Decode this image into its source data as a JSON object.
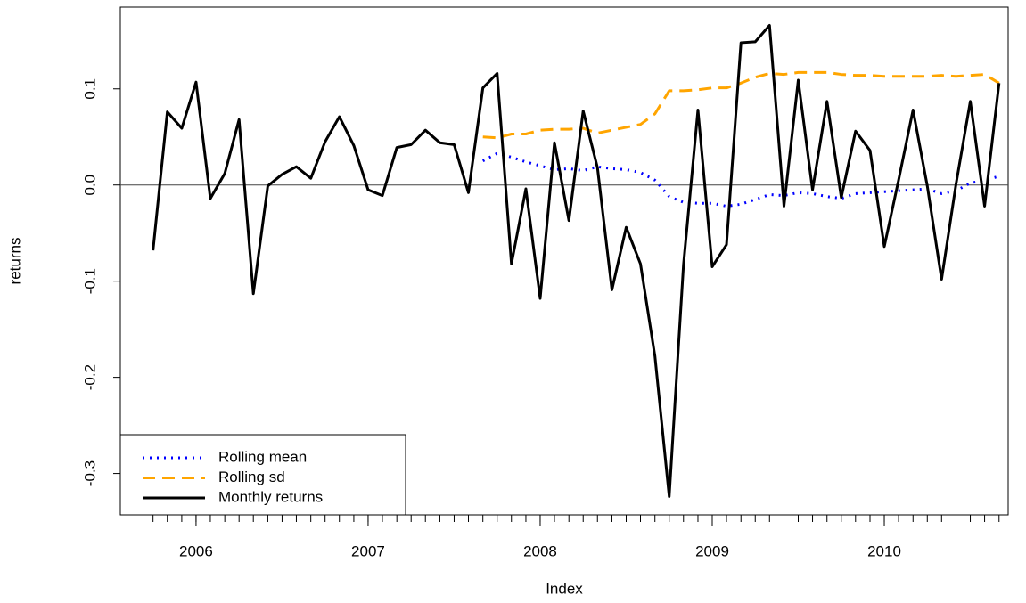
{
  "chart_data": {
    "type": "line",
    "xlabel": "Index",
    "ylabel": "returns",
    "x": [
      2005.75,
      2005.833,
      2005.917,
      2006,
      2006.083,
      2006.167,
      2006.25,
      2006.333,
      2006.417,
      2006.5,
      2006.583,
      2006.667,
      2006.75,
      2006.833,
      2006.917,
      2007,
      2007.083,
      2007.167,
      2007.25,
      2007.333,
      2007.417,
      2007.5,
      2007.583,
      2007.667,
      2007.75,
      2007.833,
      2007.917,
      2008,
      2008.083,
      2008.167,
      2008.25,
      2008.333,
      2008.417,
      2008.5,
      2008.583,
      2008.667,
      2008.75,
      2008.833,
      2008.917,
      2009,
      2009.083,
      2009.167,
      2009.25,
      2009.333,
      2009.417,
      2009.5,
      2009.583,
      2009.667,
      2009.75,
      2009.833,
      2009.917,
      2010,
      2010.083,
      2010.167,
      2010.25,
      2010.333,
      2010.417,
      2010.5,
      2010.583,
      2010.667
    ],
    "series": [
      {
        "name": "Rolling mean",
        "color": "#0000ff",
        "style": "dotted",
        "values": [
          null,
          null,
          null,
          null,
          null,
          null,
          null,
          null,
          null,
          null,
          null,
          null,
          null,
          null,
          null,
          null,
          null,
          null,
          null,
          null,
          null,
          null,
          null,
          0.025,
          0.033,
          0.029,
          0.024,
          0.02,
          0.016,
          0.017,
          0.015,
          0.019,
          0.017,
          0.016,
          0.013,
          0.005,
          -0.012,
          -0.018,
          -0.019,
          -0.019,
          -0.022,
          -0.02,
          -0.015,
          -0.01,
          -0.011,
          -0.008,
          -0.009,
          -0.012,
          -0.014,
          -0.009,
          -0.008,
          -0.007,
          -0.006,
          -0.005,
          -0.004,
          -0.009,
          -0.006,
          0.002,
          0.005,
          0.009
        ]
      },
      {
        "name": "Rolling sd",
        "color": "#ffa500",
        "style": "dashed",
        "values": [
          null,
          null,
          null,
          null,
          null,
          null,
          null,
          null,
          null,
          null,
          null,
          null,
          null,
          null,
          null,
          null,
          null,
          null,
          null,
          null,
          null,
          null,
          null,
          0.05,
          0.049,
          0.053,
          0.053,
          0.057,
          0.058,
          0.058,
          0.059,
          0.054,
          0.057,
          0.06,
          0.063,
          0.074,
          0.098,
          0.098,
          0.099,
          0.101,
          0.101,
          0.106,
          0.112,
          0.116,
          0.115,
          0.117,
          0.117,
          0.117,
          0.115,
          0.114,
          0.114,
          0.113,
          0.113,
          0.113,
          0.113,
          0.114,
          0.113,
          0.114,
          0.115,
          0.106
        ]
      },
      {
        "name": "Monthly returns",
        "color": "#000000",
        "style": "solid",
        "values": [
          -0.068,
          0.076,
          0.059,
          0.107,
          -0.014,
          0.012,
          0.068,
          -0.113,
          -0.001,
          0.011,
          0.019,
          0.007,
          0.045,
          0.071,
          0.041,
          -0.005,
          -0.011,
          0.039,
          0.042,
          0.057,
          0.044,
          0.042,
          -0.008,
          0.101,
          0.116,
          -0.082,
          -0.004,
          -0.118,
          0.044,
          -0.037,
          0.077,
          0.018,
          -0.109,
          -0.044,
          -0.082,
          -0.178,
          -0.324,
          -0.083,
          0.078,
          -0.085,
          -0.062,
          0.148,
          0.149,
          0.166,
          -0.022,
          0.109,
          -0.005,
          0.087,
          -0.013,
          0.056,
          0.036,
          -0.064,
          0.005,
          0.078,
          -0.001,
          -0.098,
          0.001,
          0.087,
          -0.022,
          0.106
        ]
      }
    ],
    "hline": 0,
    "xlim": [
      2005.56,
      2010.72
    ],
    "ylim": [
      -0.343,
      0.185
    ],
    "xticks": [
      2006,
      2007,
      2008,
      2009,
      2010
    ],
    "yticks": [
      -0.3,
      -0.2,
      -0.1,
      {
        "value": 0,
        "label": "0.0"
      },
      0.1
    ],
    "legend": "bottom-left"
  }
}
